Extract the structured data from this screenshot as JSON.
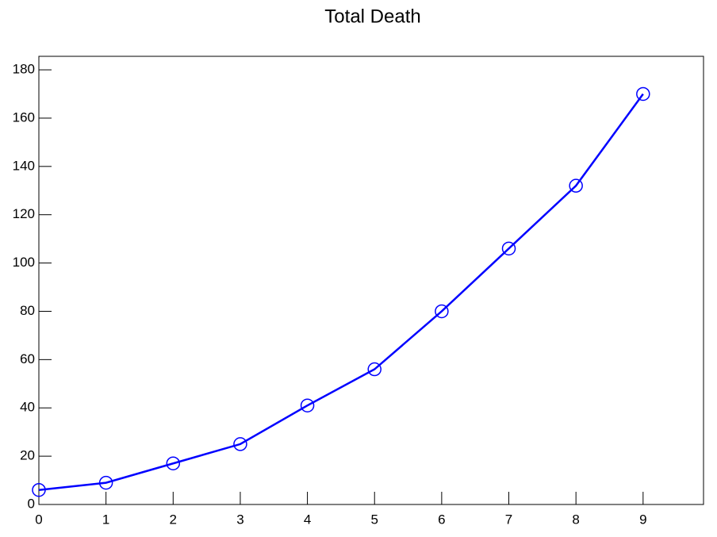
{
  "chart_data": {
    "type": "line",
    "title": "Total Death",
    "x": [
      0,
      1,
      2,
      3,
      4,
      5,
      6,
      7,
      8,
      9
    ],
    "series": [
      {
        "name": "Total Death",
        "color": "#0000ff",
        "values": [
          6,
          9,
          17,
          25,
          41,
          56,
          80,
          106,
          132,
          170
        ]
      }
    ],
    "xlim": [
      0,
      9.9
    ],
    "xticks": [
      0,
      1,
      2,
      3,
      4,
      5,
      6,
      7,
      8,
      9
    ],
    "ylim": [
      0,
      185.6
    ],
    "yticks": [
      0,
      20,
      40,
      60,
      80,
      100,
      120,
      140,
      160,
      180
    ],
    "grid": false,
    "marker": "circle"
  }
}
